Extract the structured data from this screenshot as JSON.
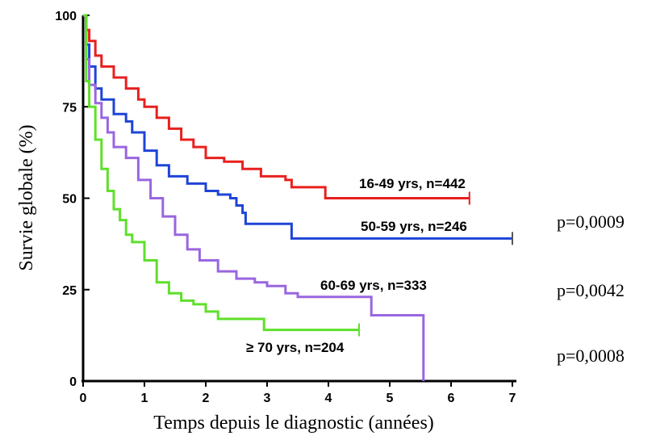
{
  "chart_data": {
    "type": "line",
    "title": "",
    "xlabel": "Temps depuis le diagnostic (années)",
    "ylabel": "Survie globale (%)",
    "xlim": [
      0,
      7
    ],
    "ylim": [
      0,
      100
    ],
    "x_ticks": [
      0,
      1,
      2,
      3,
      4,
      5,
      6,
      7
    ],
    "y_ticks": [
      0,
      25,
      50,
      75,
      100
    ],
    "grid": false,
    "series": [
      {
        "name": "16-49 yrs, n=442",
        "color": "#e8201e",
        "points": [
          [
            0,
            100
          ],
          [
            0.05,
            96
          ],
          [
            0.1,
            93
          ],
          [
            0.2,
            89
          ],
          [
            0.3,
            86
          ],
          [
            0.5,
            83
          ],
          [
            0.7,
            80
          ],
          [
            0.9,
            77
          ],
          [
            1.0,
            75
          ],
          [
            1.2,
            72
          ],
          [
            1.4,
            69
          ],
          [
            1.6,
            66
          ],
          [
            1.8,
            64
          ],
          [
            2.0,
            61
          ],
          [
            2.3,
            60
          ],
          [
            2.6,
            58
          ],
          [
            2.9,
            56
          ],
          [
            3.2,
            56
          ],
          [
            3.3,
            55
          ],
          [
            3.4,
            53
          ],
          [
            3.9,
            53
          ],
          [
            3.95,
            50
          ],
          [
            4.5,
            50
          ],
          [
            5.5,
            50
          ],
          [
            6.3,
            50
          ]
        ]
      },
      {
        "name": "50-59 yrs, n=246",
        "color": "#1f44d6",
        "points": [
          [
            0,
            100
          ],
          [
            0.05,
            92
          ],
          [
            0.1,
            86
          ],
          [
            0.2,
            80
          ],
          [
            0.3,
            77
          ],
          [
            0.5,
            73
          ],
          [
            0.7,
            71
          ],
          [
            0.8,
            68
          ],
          [
            1.0,
            63
          ],
          [
            1.2,
            59
          ],
          [
            1.4,
            56
          ],
          [
            1.7,
            54
          ],
          [
            2.0,
            52
          ],
          [
            2.2,
            51
          ],
          [
            2.4,
            50
          ],
          [
            2.5,
            48
          ],
          [
            2.6,
            46
          ],
          [
            2.65,
            43
          ],
          [
            3.0,
            43
          ],
          [
            3.35,
            43
          ],
          [
            3.4,
            39
          ],
          [
            4.0,
            39
          ],
          [
            5.0,
            39
          ],
          [
            6.0,
            39
          ],
          [
            7.0,
            39
          ]
        ]
      },
      {
        "name": "60-69 yrs, n=333",
        "color": "#9966e0",
        "points": [
          [
            0,
            100
          ],
          [
            0.05,
            88
          ],
          [
            0.1,
            81
          ],
          [
            0.2,
            76
          ],
          [
            0.3,
            72
          ],
          [
            0.4,
            68
          ],
          [
            0.5,
            64
          ],
          [
            0.7,
            61
          ],
          [
            0.9,
            55
          ],
          [
            1.1,
            50
          ],
          [
            1.3,
            45
          ],
          [
            1.5,
            40
          ],
          [
            1.7,
            36
          ],
          [
            1.9,
            33
          ],
          [
            2.2,
            30
          ],
          [
            2.5,
            28
          ],
          [
            2.8,
            27
          ],
          [
            3.0,
            26
          ],
          [
            3.3,
            24
          ],
          [
            3.5,
            23
          ],
          [
            4.0,
            23
          ],
          [
            4.6,
            23
          ],
          [
            4.7,
            18
          ],
          [
            5.0,
            18
          ],
          [
            5.5,
            18
          ],
          [
            5.55,
            0
          ]
        ]
      },
      {
        "name": "≥ 70 yrs, n=204",
        "color": "#5ee02a",
        "points": [
          [
            0,
            100
          ],
          [
            0.05,
            82
          ],
          [
            0.1,
            75
          ],
          [
            0.2,
            66
          ],
          [
            0.3,
            58
          ],
          [
            0.4,
            52
          ],
          [
            0.5,
            47
          ],
          [
            0.6,
            44
          ],
          [
            0.7,
            40
          ],
          [
            0.8,
            38
          ],
          [
            1.0,
            33
          ],
          [
            1.2,
            27
          ],
          [
            1.4,
            24
          ],
          [
            1.6,
            22
          ],
          [
            1.8,
            21
          ],
          [
            2.0,
            19
          ],
          [
            2.2,
            17
          ],
          [
            2.5,
            17
          ],
          [
            2.9,
            17
          ],
          [
            2.95,
            14
          ],
          [
            3.5,
            14
          ],
          [
            4.0,
            14
          ],
          [
            4.5,
            14
          ]
        ]
      }
    ],
    "annotations": [
      "p=0,0009",
      "p=0,0042",
      "p=0,0008"
    ]
  }
}
